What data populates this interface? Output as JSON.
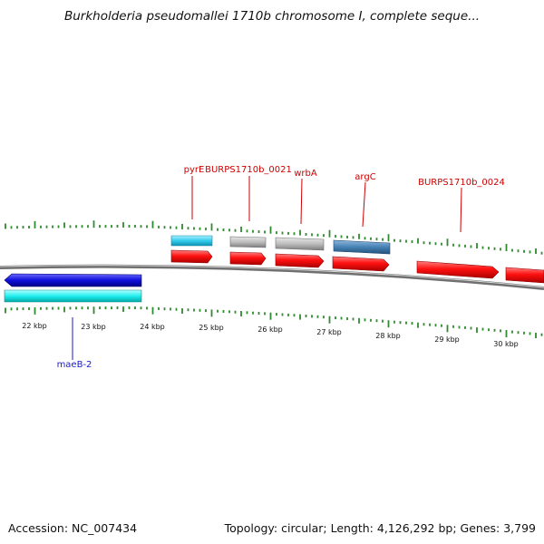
{
  "header": {
    "title": "Burkholderia pseudomallei 1710b chromosome I, complete seque..."
  },
  "footer": {
    "accession": "Accession: NC_007434",
    "summary": "Topology: circular; Length: 4,126,292 bp; Genes: 3,799"
  },
  "colors": {
    "backbone": "#8a8a8a",
    "tick": "#2e8b2e",
    "gene_label_red": "#cc0000",
    "gene_label_blue": "#1a1acc",
    "cds_red": "#ff1010",
    "gene_cyan": "#33ccee",
    "gene_grey": "#b8b8b8",
    "gene_steelblue": "#4682b4",
    "gene_darkblue": "#1010dd",
    "gene_aqua": "#22eeee"
  },
  "scale_labels": [
    "22 kbp",
    "23 kbp",
    "24 kbp",
    "25 kbp",
    "26 kbp",
    "27 kbp",
    "28 kbp",
    "29 kbp",
    "30 kbp"
  ],
  "gene_labels": [
    {
      "name": "pyrE",
      "strand": "forward"
    },
    {
      "name": "BURPS1710b_0021",
      "strand": "forward"
    },
    {
      "name": "wrbA",
      "strand": "forward"
    },
    {
      "name": "argC",
      "strand": "forward"
    },
    {
      "name": "BURPS1710b_0024",
      "strand": "forward"
    },
    {
      "name": "maeB-2",
      "strand": "reverse"
    }
  ]
}
